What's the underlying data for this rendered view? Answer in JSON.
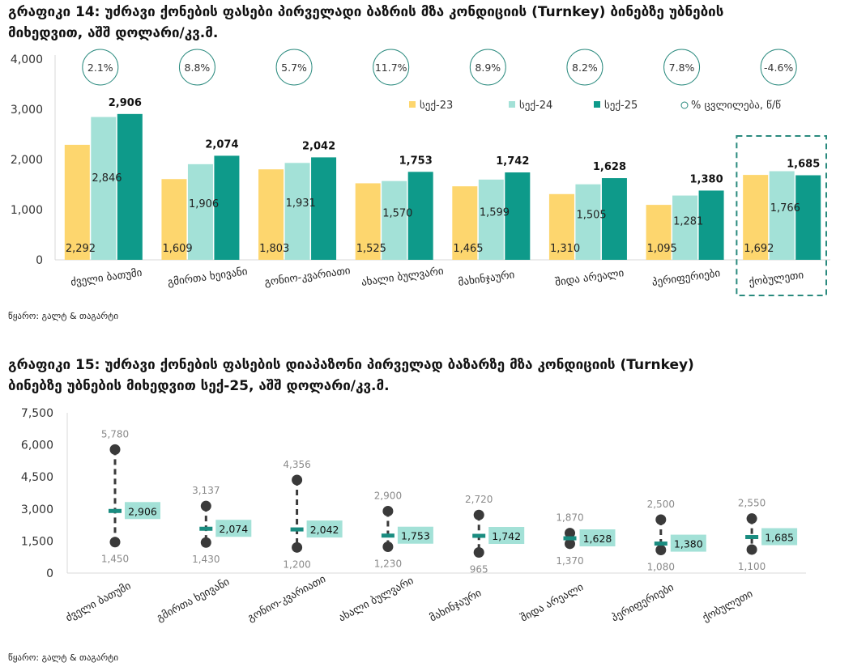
{
  "chart_data": [
    {
      "type": "bar",
      "title": "გრაფიკი 14: უძრავი ქონების ფასები პირველადი ბაზრის მზა კონდიციის (Turnkey) ბინებზე უბნების მიხედვით, აშშ დოლარი/კვ.მ.",
      "categories": [
        "ძველი ბათუმი",
        "გმირთა ხეივანი",
        "გონიო-კვარიათი",
        "ახალი ბულვარი",
        "მახინჯაური",
        "შიდა არეალი",
        "პერიფერიები",
        "ქობულეთი"
      ],
      "series": [
        {
          "name": "სექ-23",
          "color": "#FDD66E",
          "values": [
            2292,
            1609,
            1803,
            1525,
            1465,
            1310,
            1095,
            1692
          ]
        },
        {
          "name": "სექ-24",
          "color": "#A3E1D7",
          "values": [
            2846,
            1906,
            1931,
            1570,
            1599,
            1505,
            1281,
            1766
          ]
        },
        {
          "name": "სექ-25",
          "color": "#0E9A8A",
          "values": [
            2906,
            2074,
            2042,
            1753,
            1742,
            1628,
            1380,
            1685
          ]
        }
      ],
      "yoy_change": {
        "name": "% ცვლილება, წ/წ",
        "labels": [
          "2.1%",
          "8.8%",
          "5.7%",
          "11.7%",
          "8.9%",
          "8.2%",
          "7.8%",
          "-4.6%"
        ]
      },
      "highlighted_category": "ქობულეთი",
      "yticks": [
        "0",
        "1,000",
        "2,000",
        "3,000",
        "4,000"
      ],
      "ylim": [
        0,
        4000
      ],
      "xlabel": "",
      "ylabel": "",
      "legend": "top-right",
      "grid": false,
      "source": "წყარო: გალტ & თაგარტი"
    },
    {
      "type": "range",
      "title": "გრაფიკი 15: უძრავი ქონების ფასების დიაპაზონი პირველად ბაზარზე მზა კონდიციის (Turnkey) ბინებზე უბნების მიხედვით სექ-25, აშშ დოლარი/კვ.მ.",
      "categories": [
        "ძველი ბათუმი",
        "გმირთა ხეივანი",
        "გონიო-კვარიათი",
        "ახალი ბულვარი",
        "მახინჯაური",
        "შიდა არეალი",
        "პერიფერიები",
        "ქობულეთი"
      ],
      "max": [
        5780,
        3137,
        4356,
        2900,
        2720,
        1870,
        2500,
        2550
      ],
      "min": [
        1450,
        1430,
        1200,
        1230,
        965,
        1370,
        1080,
        1100
      ],
      "avg": [
        2906,
        2074,
        2042,
        1753,
        1742,
        1628,
        1380,
        1685
      ],
      "max_labels": [
        "5,780",
        "3,137",
        "4,356",
        "2,900",
        "2,720",
        "1,870",
        "2,500",
        "2,550"
      ],
      "min_labels": [
        "1,450",
        "1,430",
        "1,200",
        "1,230",
        "965",
        "1,370",
        "1,080",
        "1,100"
      ],
      "avg_labels": [
        "2,906",
        "2,074",
        "2,042",
        "1,753",
        "1,742",
        "1,628",
        "1,380",
        "1,685"
      ],
      "yticks": [
        "0",
        "1,500",
        "3,000",
        "4,500",
        "6,000",
        "7,500"
      ],
      "ylim": [
        0,
        7500
      ],
      "colors": {
        "dot": "#3A3A3A",
        "avg_marker": "#1A8C80",
        "avg_label_bg": "#A3E1D7",
        "range_label": "#8A8A8A"
      },
      "xlabel": "",
      "ylabel": "",
      "grid": false,
      "source": "წყარო: გალტ & თაგარტი"
    }
  ],
  "chart1": {
    "title_line1": "გრაფიკი 14: უძრავი ქონების ფასები პირველადი ბაზრის მზა კონდიციის (Turnkey) ბინებზე უბნების",
    "title_line2": "მიხედვით, აშშ დოლარი/კვ.მ.",
    "bar_labels": [
      [
        "2,292",
        "1,609",
        "1,803",
        "1,525",
        "1,465",
        "1,310",
        "1,095",
        "1,692"
      ],
      [
        "2,846",
        "1,906",
        "1,931",
        "1,570",
        "1,599",
        "1,505",
        "1,281",
        "1,766"
      ],
      [
        "2,906",
        "2,074",
        "2,042",
        "1,753",
        "1,742",
        "1,628",
        "1,380",
        "1,685"
      ]
    ],
    "source": "წყარო: გალტ & თაგარტი"
  },
  "chart2": {
    "title_line1": "გრაფიკი 15: უძრავი ქონების ფასების დიაპაზონი პირველად ბაზარზე მზა კონდიციის (Turnkey)",
    "title_line2": "ბინებზე უბნების მიხედვით სექ-25, აშშ დოლარი/კვ.მ.",
    "source": "წყარო: გალტ & თაგარტი"
  }
}
